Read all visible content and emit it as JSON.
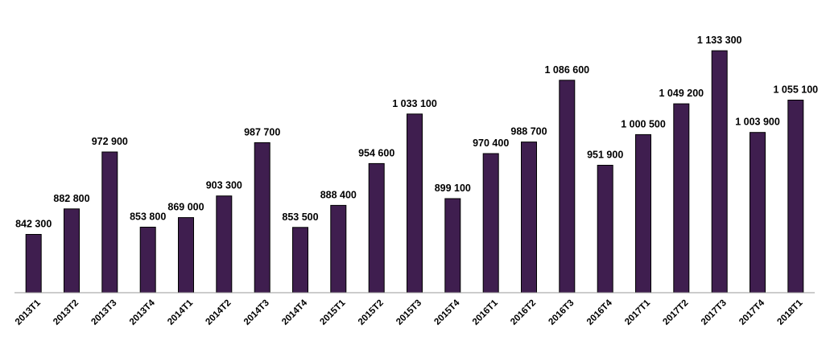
{
  "chart_data": {
    "type": "bar",
    "title": "",
    "xlabel": "",
    "ylabel": "",
    "categories": [
      "2013T1",
      "2013T2",
      "2013T3",
      "2013T4",
      "2014T1",
      "2014T2",
      "2014T3",
      "2014T4",
      "2015T1",
      "2015T2",
      "2015T3",
      "2015T4",
      "2016T1",
      "2016T2",
      "2016T3",
      "2016T4",
      "2017T1",
      "2017T2",
      "2017T3",
      "2017T4",
      "2018T1"
    ],
    "values": [
      842300,
      882800,
      972900,
      853800,
      869000,
      903300,
      987700,
      853500,
      888400,
      954600,
      1033100,
      899100,
      970400,
      988700,
      1086600,
      951900,
      1000500,
      1049200,
      1133300,
      1003900,
      1055100
    ],
    "value_labels": [
      "842 300",
      "882 800",
      "972 900",
      "853 800",
      "869 000",
      "903 300",
      "987 700",
      "853 500",
      "888 400",
      "954 600",
      "1 033 100",
      "899 100",
      "970 400",
      "988 700",
      "1 086 600",
      "951 900",
      "1 000 500",
      "1 049 200",
      "1 133 300",
      "1 003 900",
      "1 055 100"
    ],
    "ylim": [
      750000,
      1150000
    ],
    "grid": false,
    "legend": "none",
    "bar_color": "#3f1e4f"
  }
}
